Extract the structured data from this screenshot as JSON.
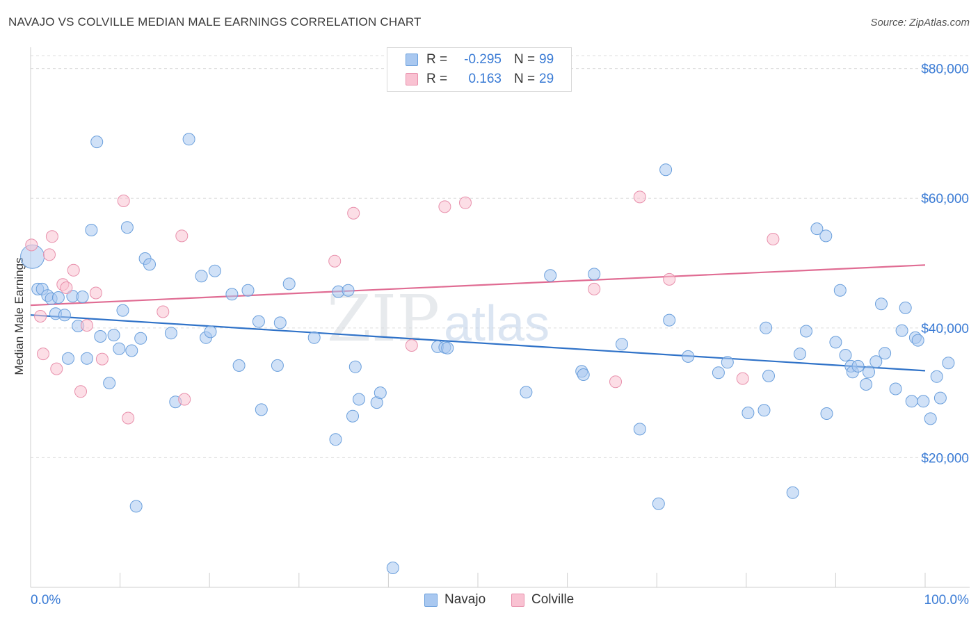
{
  "title": "NAVAJO VS COLVILLE MEDIAN MALE EARNINGS CORRELATION CHART",
  "source": "Source: ZipAtlas.com",
  "watermark": {
    "zip": "ZIP",
    "atlas": "atlas"
  },
  "legend": {
    "rows": [
      {
        "r_label": "R =",
        "r_value": "-0.295",
        "n_label": "N =",
        "n_value": "99",
        "color": "#a9c8f0",
        "border": "#6a9fdc"
      },
      {
        "r_label": "R =",
        "r_value": "0.163",
        "n_label": "N =",
        "n_value": "29",
        "color": "#f9c2d2",
        "border": "#e890ac"
      }
    ]
  },
  "bottom_legend": {
    "navajo": "Navajo",
    "colville": "Colville"
  },
  "chart_data": {
    "type": "scatter",
    "title": "NAVAJO VS COLVILLE MEDIAN MALE EARNINGS CORRELATION CHART",
    "xlabel": "",
    "ylabel": "Median Male Earnings",
    "xlim": [
      0,
      100
    ],
    "ylim": [
      0,
      82000
    ],
    "x_tick_labels": [
      "0.0%",
      "100.0%"
    ],
    "y_ticks": [
      20000,
      40000,
      60000,
      80000
    ],
    "y_tick_labels": [
      "$20,000",
      "$40,000",
      "$60,000",
      "$80,000"
    ],
    "series": [
      {
        "name": "Navajo",
        "color": "#a9c8f0",
        "stroke": "#6a9fdc",
        "line_color": "#2f72c8",
        "trend": {
          "x": [
            0,
            100
          ],
          "y": [
            42000,
            33400
          ]
        },
        "points": [
          [
            0.2,
            51000
          ],
          [
            0.8,
            46000
          ],
          [
            1.3,
            46000
          ],
          [
            1.9,
            45000
          ],
          [
            2.3,
            44500
          ],
          [
            2.8,
            42200
          ],
          [
            3.1,
            44700
          ],
          [
            3.8,
            42000
          ],
          [
            4.2,
            35300
          ],
          [
            4.7,
            44900
          ],
          [
            5.3,
            40300
          ],
          [
            5.8,
            44800
          ],
          [
            6.3,
            35300
          ],
          [
            6.8,
            55100
          ],
          [
            7.4,
            68700
          ],
          [
            7.8,
            38700
          ],
          [
            8.8,
            31500
          ],
          [
            9.3,
            38900
          ],
          [
            9.9,
            36800
          ],
          [
            10.3,
            42700
          ],
          [
            10.8,
            55500
          ],
          [
            11.3,
            36500
          ],
          [
            11.8,
            12500
          ],
          [
            12.3,
            38400
          ],
          [
            12.8,
            50700
          ],
          [
            13.3,
            49800
          ],
          [
            15.7,
            39200
          ],
          [
            16.2,
            28600
          ],
          [
            17.7,
            69100
          ],
          [
            19.1,
            48000
          ],
          [
            19.6,
            38500
          ],
          [
            20.1,
            39400
          ],
          [
            20.6,
            48800
          ],
          [
            22.5,
            45200
          ],
          [
            23.3,
            34200
          ],
          [
            24.3,
            45800
          ],
          [
            25.5,
            41000
          ],
          [
            25.8,
            27400
          ],
          [
            27.6,
            34200
          ],
          [
            27.9,
            40800
          ],
          [
            28.9,
            46800
          ],
          [
            31.7,
            38500
          ],
          [
            34.1,
            22800
          ],
          [
            34.4,
            45600
          ],
          [
            35.5,
            45800
          ],
          [
            36.0,
            26400
          ],
          [
            36.3,
            34000
          ],
          [
            36.7,
            29000
          ],
          [
            38.7,
            28500
          ],
          [
            39.1,
            30000
          ],
          [
            40.5,
            3000
          ],
          [
            45.5,
            37100
          ],
          [
            46.3,
            37000
          ],
          [
            46.6,
            36900
          ],
          [
            55.4,
            30100
          ],
          [
            58.1,
            48100
          ],
          [
            61.6,
            33300
          ],
          [
            61.8,
            32800
          ],
          [
            63.0,
            48300
          ],
          [
            66.1,
            37500
          ],
          [
            68.1,
            24400
          ],
          [
            70.2,
            12900
          ],
          [
            71.0,
            64400
          ],
          [
            71.4,
            41200
          ],
          [
            73.5,
            35600
          ],
          [
            76.9,
            33100
          ],
          [
            77.9,
            34700
          ],
          [
            80.2,
            26900
          ],
          [
            82.0,
            27300
          ],
          [
            82.2,
            40000
          ],
          [
            82.5,
            32600
          ],
          [
            85.2,
            14600
          ],
          [
            86.0,
            36000
          ],
          [
            86.7,
            39500
          ],
          [
            87.9,
            55300
          ],
          [
            88.9,
            54200
          ],
          [
            89.0,
            26800
          ],
          [
            90.0,
            37800
          ],
          [
            90.5,
            45800
          ],
          [
            91.1,
            35800
          ],
          [
            91.7,
            34100
          ],
          [
            91.9,
            33200
          ],
          [
            92.5,
            34100
          ],
          [
            93.4,
            31300
          ],
          [
            93.7,
            33200
          ],
          [
            94.5,
            34800
          ],
          [
            95.1,
            43700
          ],
          [
            95.5,
            36100
          ],
          [
            96.7,
            30600
          ],
          [
            97.4,
            39600
          ],
          [
            97.8,
            43100
          ],
          [
            98.5,
            28700
          ],
          [
            98.9,
            38500
          ],
          [
            99.2,
            38100
          ],
          [
            99.8,
            28700
          ],
          [
            100.6,
            26000
          ],
          [
            101.3,
            32500
          ],
          [
            101.7,
            29200
          ],
          [
            102.6,
            34600
          ]
        ]
      },
      {
        "name": "Colville",
        "color": "#f9c2d2",
        "stroke": "#e890ac",
        "line_color": "#e06c93",
        "trend": {
          "x": [
            0,
            100
          ],
          "y": [
            43500,
            49700
          ]
        },
        "points": [
          [
            0.1,
            52800
          ],
          [
            1.1,
            41800
          ],
          [
            1.4,
            36000
          ],
          [
            2.1,
            51300
          ],
          [
            2.4,
            54100
          ],
          [
            2.9,
            33700
          ],
          [
            3.6,
            46700
          ],
          [
            4.0,
            46200
          ],
          [
            4.8,
            48900
          ],
          [
            5.6,
            30200
          ],
          [
            6.3,
            40400
          ],
          [
            7.3,
            45400
          ],
          [
            8.0,
            35200
          ],
          [
            10.4,
            59600
          ],
          [
            10.9,
            26100
          ],
          [
            14.8,
            42500
          ],
          [
            16.9,
            54200
          ],
          [
            17.2,
            29000
          ],
          [
            34.0,
            50300
          ],
          [
            36.1,
            57700
          ],
          [
            42.6,
            37300
          ],
          [
            46.3,
            58700
          ],
          [
            48.6,
            59300
          ],
          [
            63.0,
            46000
          ],
          [
            65.4,
            31700
          ],
          [
            68.1,
            60200
          ],
          [
            71.4,
            47500
          ],
          [
            79.6,
            32200
          ],
          [
            83.0,
            53700
          ]
        ]
      }
    ]
  }
}
